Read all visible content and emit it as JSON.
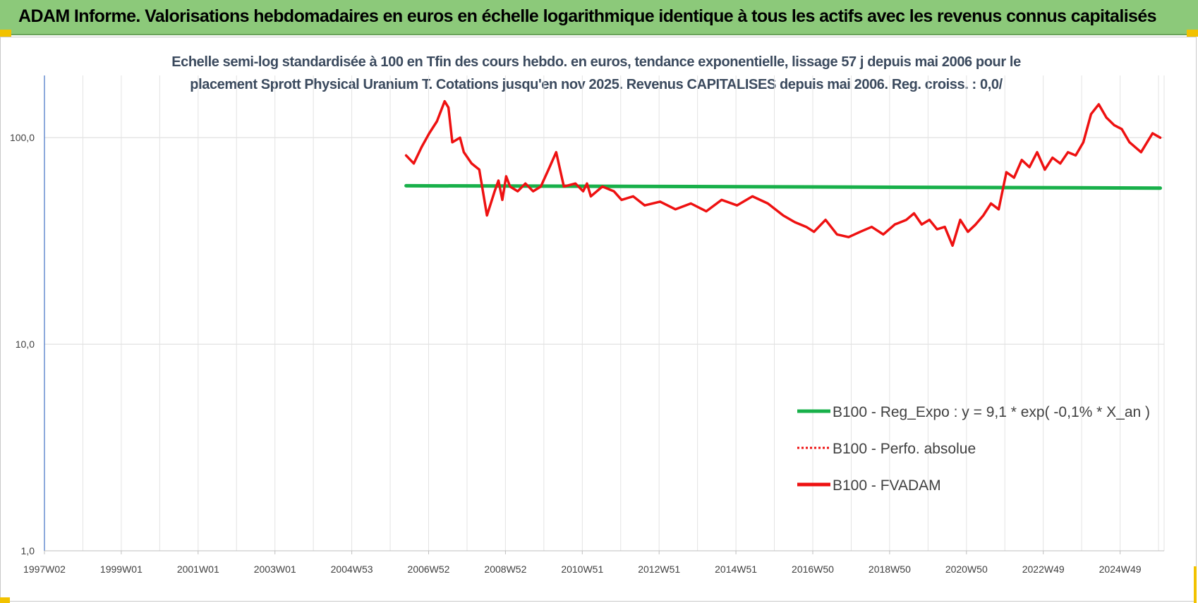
{
  "header": {
    "title": "ADAM Informe. Valorisations hebdomadaires en euros en échelle logarithmique identique à tous les actifs avec les revenus connus capitalisés"
  },
  "chart_data": {
    "type": "line",
    "subtitle_line1": "Echelle semi-log standardisée à 100 en Tfin des cours hebdo. en euros, tendance exponentielle, lissage 57 j depuis mai 2006 pour le",
    "subtitle_line2": "placement Sprott Physical Uranium T. Cotations jusqu'en nov 2025.  Revenus CAPITALISES depuis mai 2006. Reg. croiss. : 0,0/",
    "y_scale": "log",
    "ylim": [
      1,
      200
    ],
    "y_ticks": [
      "1,0",
      "10,0",
      "100,0"
    ],
    "y_tick_values": [
      1,
      10,
      100
    ],
    "x_ticks": [
      "1997W02",
      "1999W01",
      "2001W01",
      "2003W01",
      "2004W53",
      "2006W52",
      "2008W52",
      "2010W51",
      "2012W51",
      "2014W51",
      "2016W50",
      "2018W50",
      "2020W50",
      "2022W49",
      "2024W49"
    ],
    "xlim": [
      1997.0,
      2026.1
    ],
    "grid": true,
    "legend_position": "right",
    "series": [
      {
        "name": "B100 - Reg_Expo : y = 9,1 * exp( -0,1% *  X_an )",
        "color": "#18b04a",
        "style": "solid",
        "x": [
          2006.4,
          2013.8,
          2026.0
        ],
        "y": [
          58.5,
          58.0,
          57.0
        ]
      },
      {
        "name": "B100 - Perfo. absolue",
        "color": "#ee1111",
        "style": "dotted",
        "x": [],
        "y": []
      },
      {
        "name": "B100 - FVADAM",
        "color": "#ee1111",
        "style": "solid",
        "x": [
          2006.4,
          2006.6,
          2006.8,
          2007.0,
          2007.2,
          2007.4,
          2007.5,
          2007.6,
          2007.8,
          2007.9,
          2008.1,
          2008.3,
          2008.5,
          2008.7,
          2008.8,
          2008.9,
          2009.0,
          2009.1,
          2009.3,
          2009.5,
          2009.7,
          2009.9,
          2010.1,
          2010.3,
          2010.5,
          2010.8,
          2011.0,
          2011.1,
          2011.2,
          2011.5,
          2011.8,
          2012.0,
          2012.3,
          2012.6,
          2013.0,
          2013.4,
          2013.8,
          2014.2,
          2014.6,
          2015.0,
          2015.4,
          2015.8,
          2016.2,
          2016.5,
          2016.8,
          2017.0,
          2017.3,
          2017.6,
          2017.9,
          2018.2,
          2018.5,
          2018.8,
          2019.1,
          2019.4,
          2019.6,
          2019.8,
          2020.0,
          2020.2,
          2020.4,
          2020.6,
          2020.8,
          2021.0,
          2021.2,
          2021.4,
          2021.6,
          2021.8,
          2022.0,
          2022.2,
          2022.4,
          2022.6,
          2022.8,
          2023.0,
          2023.2,
          2023.4,
          2023.6,
          2023.8,
          2024.0,
          2024.2,
          2024.4,
          2024.6,
          2024.8,
          2025.0,
          2025.2,
          2025.5,
          2025.8,
          2026.0
        ],
        "y": [
          82,
          75,
          90,
          105,
          120,
          150,
          140,
          95,
          100,
          85,
          75,
          70,
          42,
          55,
          62,
          50,
          65,
          58,
          55,
          60,
          55,
          58,
          70,
          85,
          58,
          60,
          55,
          60,
          52,
          58,
          55,
          50,
          52,
          47,
          49,
          45,
          48,
          44,
          50,
          47,
          52,
          48,
          42,
          39,
          37,
          35,
          40,
          34,
          33,
          35,
          37,
          34,
          38,
          40,
          43,
          38,
          40,
          36,
          37,
          30,
          40,
          35,
          38,
          42,
          48,
          45,
          68,
          64,
          78,
          72,
          85,
          70,
          80,
          75,
          85,
          82,
          95,
          130,
          145,
          125,
          115,
          110,
          95,
          85,
          105,
          100
        ]
      }
    ]
  }
}
